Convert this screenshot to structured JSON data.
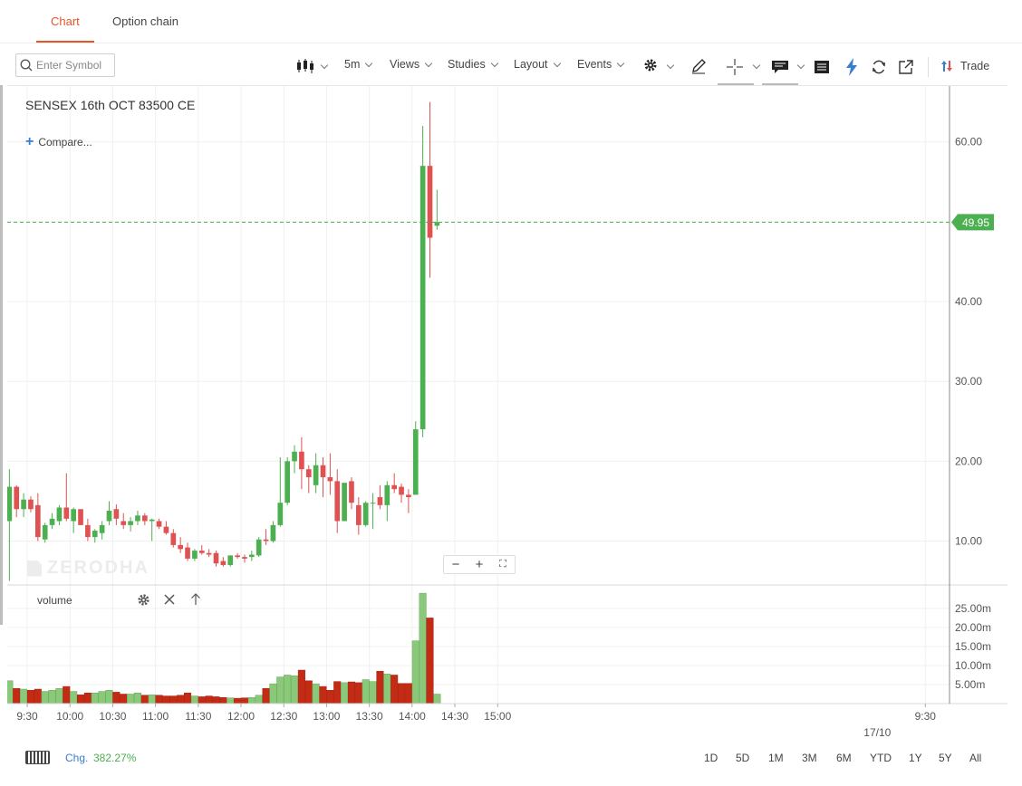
{
  "tabs": [
    {
      "label": "Chart",
      "active": true
    },
    {
      "label": "Option chain",
      "active": false
    }
  ],
  "toolbar": {
    "symbol_placeholder": "Enter Symbol",
    "interval": "5m",
    "views": "Views",
    "studies": "Studies",
    "layout": "Layout",
    "events": "Events",
    "trade": "Trade",
    "icons": [
      "candlestick-icon",
      "gear-icon",
      "pencil-icon",
      "crosshair-icon",
      "comment-icon",
      "table-icon",
      "lightning-icon",
      "refresh-icon",
      "popout-icon",
      "trade-icon"
    ],
    "accent_color": "#e8542a",
    "lightning_color": "#387ed1"
  },
  "chart": {
    "symbol": "SENSEX 16th OCT 83500 CE",
    "compare_label": "Compare...",
    "watermark": "ZERODHA",
    "last_price_label": "49.95",
    "zoom_controls": [
      "−",
      "+",
      "⛶"
    ]
  },
  "volume_panel": {
    "label": "volume"
  },
  "bottom_bar": {
    "chg_label": "Chg.",
    "chg_value": "382.27%",
    "ranges": [
      "1D",
      "5D",
      "1M",
      "3M",
      "6M",
      "YTD",
      "1Y",
      "5Y",
      "All"
    ]
  },
  "chart_data": {
    "type": "candlestick",
    "interval": "5m",
    "price_axis": {
      "min": 4.5,
      "max": 67,
      "ticks": [
        10,
        20,
        30,
        40,
        60
      ],
      "tick_labels": [
        "10.00",
        "20.00",
        "30.00",
        "40.00",
        "60.00"
      ]
    },
    "last_price": 49.95,
    "up_color": "#4caf50",
    "down_color": "#e05252",
    "vol_up_color": "#8bc97a",
    "vol_down_color": "#c42b14",
    "time_axis": {
      "labels": [
        "9:30",
        "10:00",
        "10:30",
        "11:00",
        "11:30",
        "12:00",
        "12:30",
        "13:00",
        "13:30",
        "14:00",
        "14:30",
        "15:00",
        "9:30"
      ],
      "minutes": [
        570,
        600,
        630,
        660,
        690,
        720,
        750,
        780,
        810,
        840,
        870,
        900,
        1200
      ],
      "date_marker": {
        "label": "17/10",
        "minute": 1160
      },
      "range_minutes": [
        556,
        1217
      ]
    },
    "volume_axis": {
      "max": 29.5,
      "ticks": [
        5,
        10,
        15,
        20,
        25
      ],
      "tick_labels": [
        "5.00m",
        "10.00m",
        "15.00m",
        "20.00m",
        "25.00m"
      ]
    },
    "start_minute": 555,
    "candle_minutes": 5,
    "candles": [
      [
        12.5,
        19.0,
        5.0,
        16.8,
        6.0
      ],
      [
        16.8,
        17.0,
        13.0,
        14.0,
        4.0
      ],
      [
        14.0,
        16.0,
        13.0,
        15.2,
        3.8
      ],
      [
        15.2,
        15.6,
        13.6,
        14.0,
        3.5
      ],
      [
        14.5,
        16.0,
        10.0,
        10.5,
        3.8
      ],
      [
        10.2,
        12.3,
        9.8,
        12.0,
        3.2
      ],
      [
        12.0,
        13.5,
        11.5,
        12.8,
        3.5
      ],
      [
        12.5,
        14.5,
        12.0,
        14.2,
        4.0
      ],
      [
        14.2,
        18.5,
        12.5,
        12.8,
        4.5
      ],
      [
        12.5,
        14.2,
        11.0,
        14.0,
        3.2
      ],
      [
        14.0,
        14.0,
        12.0,
        12.0,
        2.3
      ],
      [
        12.0,
        12.8,
        10.0,
        10.5,
        2.8
      ],
      [
        10.5,
        11.5,
        9.8,
        11.3,
        2.8
      ],
      [
        11.0,
        12.5,
        10.2,
        12.0,
        3.2
      ],
      [
        12.5,
        15.0,
        12.0,
        13.8,
        3.5
      ],
      [
        14.0,
        14.6,
        12.0,
        12.8,
        3.0
      ],
      [
        12.5,
        13.5,
        11.5,
        12.0,
        2.5
      ],
      [
        12.0,
        13.0,
        11.2,
        12.5,
        2.5
      ],
      [
        12.5,
        13.8,
        12.0,
        13.2,
        2.8
      ],
      [
        13.2,
        13.5,
        12.0,
        12.5,
        2.2
      ],
      [
        12.5,
        12.8,
        10.0,
        12.7,
        2.3
      ],
      [
        12.5,
        12.8,
        11.5,
        11.8,
        2.2
      ],
      [
        11.8,
        12.5,
        10.8,
        11.0,
        2.0
      ],
      [
        11.0,
        11.5,
        9.2,
        9.5,
        2.0
      ],
      [
        9.5,
        10.5,
        8.5,
        9.0,
        2.2
      ],
      [
        9.2,
        9.8,
        7.5,
        7.8,
        2.8
      ],
      [
        7.8,
        9.0,
        7.5,
        8.8,
        2.0
      ],
      [
        8.8,
        9.5,
        8.3,
        8.5,
        1.8
      ],
      [
        8.5,
        9.0,
        8.0,
        8.3,
        2.0
      ],
      [
        8.5,
        8.8,
        6.8,
        7.2,
        1.8
      ],
      [
        7.5,
        8.0,
        6.8,
        7.0,
        1.6
      ],
      [
        7.0,
        8.2,
        6.8,
        8.2,
        1.5
      ],
      [
        8.2,
        8.5,
        7.8,
        8.0,
        1.4
      ],
      [
        8.0,
        8.3,
        7.3,
        7.8,
        1.5
      ],
      [
        8.0,
        8.8,
        7.5,
        8.3,
        1.6
      ],
      [
        8.2,
        10.5,
        8.0,
        10.2,
        2.2
      ],
      [
        10.2,
        11.5,
        9.5,
        10.0,
        4.0
      ],
      [
        10.0,
        12.5,
        9.8,
        12.0,
        5.2
      ],
      [
        12.0,
        20.5,
        11.8,
        14.8,
        7.0
      ],
      [
        14.8,
        20.5,
        14.5,
        20.0,
        7.5
      ],
      [
        20.0,
        22.0,
        18.5,
        21.2,
        7.3
      ],
      [
        21.2,
        23.0,
        16.5,
        19.0,
        8.8
      ],
      [
        19.0,
        19.5,
        16.0,
        18.0,
        6.0
      ],
      [
        17.0,
        21.0,
        16.0,
        19.5,
        5.2
      ],
      [
        19.5,
        20.5,
        15.5,
        18.0,
        4.5
      ],
      [
        18.0,
        21.0,
        15.8,
        17.5,
        3.5
      ],
      [
        17.5,
        19.0,
        11.0,
        12.5,
        5.8
      ],
      [
        12.5,
        17.0,
        12.5,
        17.3,
        5.5
      ],
      [
        17.5,
        18.0,
        14.0,
        14.8,
        5.7
      ],
      [
        14.5,
        15.5,
        10.8,
        12.0,
        5.5
      ],
      [
        12.0,
        15.0,
        11.8,
        14.8,
        6.3
      ],
      [
        14.8,
        16.0,
        11.5,
        14.8,
        5.8
      ],
      [
        15.5,
        17.0,
        14.0,
        14.5,
        8.5
      ],
      [
        14.5,
        17.5,
        12.5,
        17.0,
        7.8
      ],
      [
        17.0,
        18.5,
        16.0,
        16.5,
        7.5
      ],
      [
        16.8,
        17.2,
        14.8,
        15.8,
        5.3
      ],
      [
        15.8,
        16.5,
        13.5,
        15.5,
        5.3
      ],
      [
        15.8,
        25.0,
        15.8,
        24.0,
        16.5
      ],
      [
        24.0,
        62.0,
        23.0,
        57.0,
        29.0
      ],
      [
        57.0,
        65.0,
        43.0,
        48.0,
        22.5
      ],
      [
        49.5,
        54.0,
        49.0,
        49.95,
        2.5
      ]
    ]
  }
}
